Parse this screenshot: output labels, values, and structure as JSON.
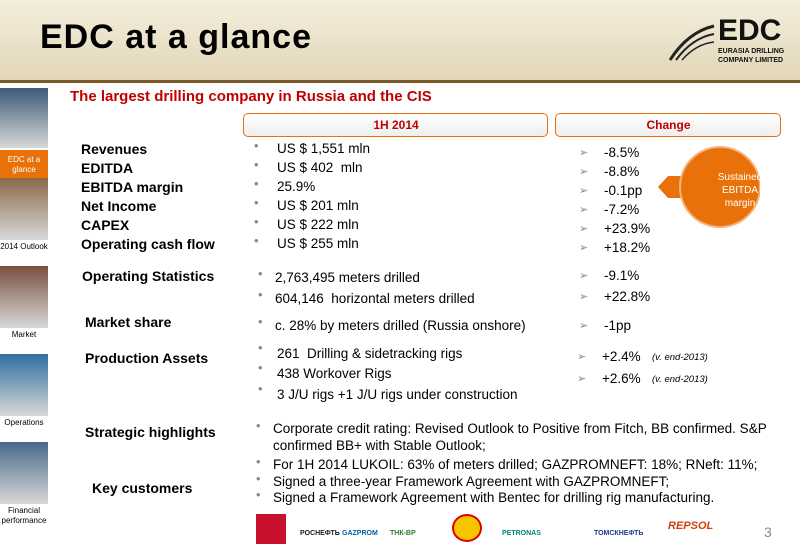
{
  "header": {
    "title": "EDC at a glance",
    "logo": {
      "name": "EDC",
      "line1": "EURASIA DRILLING",
      "line2": "COMPANY LIMITED"
    }
  },
  "subtitle": "The largest drilling company in Russia and the CIS",
  "sidebar": [
    "EDC at a glance",
    "2014 Outlook",
    "Market",
    "Operations",
    "Financial performance"
  ],
  "columns": [
    "1H 2014",
    "Change"
  ],
  "financials": [
    {
      "label": "Revenues",
      "value": "US $ 1,551 mln",
      "change": "-8.5%"
    },
    {
      "label": "EDITDA",
      "value": "US $ 402  mln",
      "change": "-8.8%"
    },
    {
      "label": "EBITDA margin",
      "value": "25.9%",
      "change": "-0.1pp"
    },
    {
      "label": "Net Income",
      "value": "US $ 201 mln",
      "change": "-7.2%"
    },
    {
      "label": "CAPEX",
      "value": "US $ 222 mln",
      "change": "+23.9%"
    },
    {
      "label": "Operating cash flow",
      "value": "US $ 255 mln",
      "change": "+18.2%"
    }
  ],
  "badge": "Sustained EBITDA margin",
  "operating": {
    "label": "Operating Statistics",
    "values": [
      "2,763,495 meters drilled",
      "604,146  horizontal meters drilled"
    ],
    "changes": [
      "-9.1%",
      "+22.8%"
    ]
  },
  "market_share": {
    "label": "Market share",
    "value": "c. 28% by meters drilled (Russia onshore)",
    "change": "-1pp"
  },
  "production": {
    "label": "Production Assets",
    "values": [
      "261  Drilling & sidetracking rigs",
      "438 Workover Rigs",
      "3 J/U rigs +1 J/U rigs under construction"
    ],
    "changes": [
      {
        "value": "+2.4%",
        "note": "(v. end-2013)"
      },
      {
        "value": "+2.6%",
        "note": "(v. end-2013)"
      }
    ]
  },
  "strategic_label": "Strategic highlights",
  "customers_label": "Key customers",
  "highlights": [
    "Corporate credit rating: Revised Outlook to Positive from Fitch, BB confirmed. S&P confirmed BB+ with Stable Outlook;",
    "For 1H 2014 LUKOIL: 63% of meters drilled; GAZPROMNEFT: 18%; RNeft: 11%;",
    "Signed a three-year Framework Agreement with GAZPROMNEFT;",
    "Signed a Framework Agreement with Bentec for drilling rig manufacturing."
  ],
  "customer_logos": [
    "РОСНЕФТЬ",
    "GAZPROM",
    "ТНК-ВР",
    "PETRONAS",
    "ТОМСКНЕФТЬ",
    "REPSOL"
  ],
  "page_number": "3"
}
